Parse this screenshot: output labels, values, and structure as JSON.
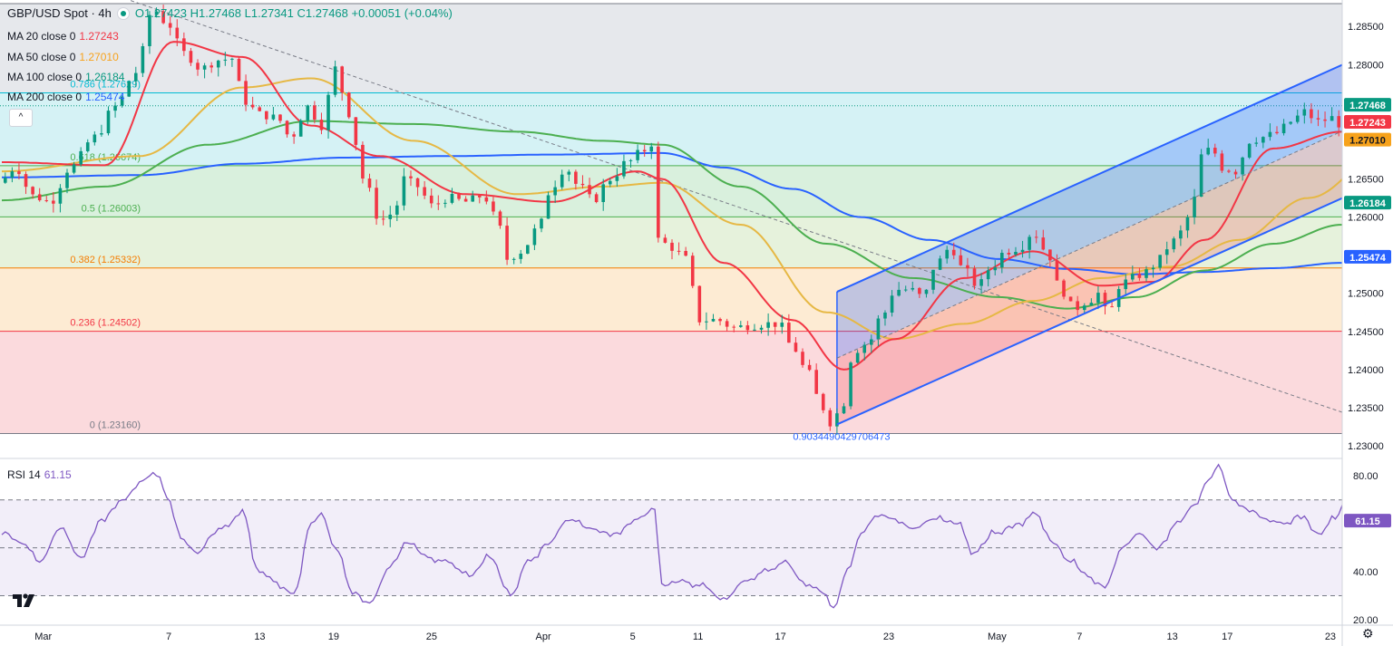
{
  "header": {
    "symbol": "GBP/USD Spot · 4h",
    "o": "O1.27423",
    "h": "H1.27468",
    "l": "L1.27341",
    "c": "C1.27468",
    "change": "+0.00051 (+0.04%)"
  },
  "ma_legend": [
    {
      "label": "MA 20 close 0",
      "value": "1.27243",
      "color": "#f23645"
    },
    {
      "label": "MA 50 close 0",
      "value": "1.27010",
      "color": "#f7a21b"
    },
    {
      "label": "MA 100 close 0",
      "value": "1.26184",
      "color": "#089981"
    },
    {
      "label": "MA 200 close 0",
      "value": "1.25474",
      "color": "#2962ff"
    }
  ],
  "collapse_label": "^",
  "rsi_legend": {
    "label": "RSI 14",
    "value": "61.15",
    "color": "#7e57c2"
  },
  "colors": {
    "up": "#089981",
    "down": "#f23645",
    "ma20": "#f23645",
    "ma50": "#e6b844",
    "ma100": "#4caf50",
    "ma200": "#2962ff",
    "channel": "#2962ff",
    "rsi": "#7e57c2"
  },
  "chart_data": [
    {
      "type": "candlestick",
      "title": "GBP/USD Spot · 4h",
      "ylim": [
        1.23,
        1.288
      ],
      "price_ticks": [
        "1.28500",
        "1.28000",
        "1.27500",
        "1.27000",
        "1.26500",
        "1.26000",
        "1.25500",
        "1.25000",
        "1.24500",
        "1.24000",
        "1.23500",
        "1.23000"
      ],
      "price_tick_values": [
        1.285,
        1.28,
        1.275,
        1.27,
        1.265,
        1.26,
        1.255,
        1.25,
        1.245,
        1.24,
        1.235,
        1.23
      ],
      "x_ticks": [
        "Mar",
        "7",
        "13",
        "19",
        "25",
        "Apr",
        "5",
        "11",
        "17",
        "23",
        "May",
        "7",
        "13",
        "17",
        "23"
      ],
      "x_tick_bars": [
        3,
        76,
        129,
        172,
        229,
        294,
        346,
        384,
        432,
        495,
        558,
        606,
        660,
        692,
        752
      ],
      "n_bars": 780,
      "fib_levels": [
        {
          "label": "0.786 (1.27629)",
          "value": 1.27629,
          "color": "#00bcd4"
        },
        {
          "label": "0.618 (1.26674)",
          "value": 1.26674,
          "color": "#4caf50"
        },
        {
          "label": "0.5 (1.26003)",
          "value": 1.26003,
          "color": "#4caf50"
        },
        {
          "label": "0.382 (1.25332)",
          "value": 1.25332,
          "color": "#f57c00"
        },
        {
          "label": "0.236 (1.24502)",
          "value": 1.24502,
          "color": "#f23645"
        },
        {
          "label": "0 (1.23160)",
          "value": 1.2316,
          "color": "#787b86"
        }
      ],
      "fib_top": 1.288,
      "fib_end_label": "0.9034490429706473",
      "price_labels": [
        {
          "text": "1.27468",
          "value": 1.27468,
          "bg": "#089981",
          "fg": "#ffffff"
        },
        {
          "text": "1.27243",
          "value": 1.27243,
          "bg": "#f23645",
          "fg": "#ffffff"
        },
        {
          "text": "1.27010",
          "value": 1.2701,
          "bg": "#f7a21b",
          "fg": "#131722"
        },
        {
          "text": "1.26184",
          "value": 1.26184,
          "bg": "#089981",
          "fg": "#ffffff"
        },
        {
          "text": "1.25474",
          "value": 1.25474,
          "bg": "#2962ff",
          "fg": "#ffffff"
        }
      ],
      "channel": {
        "start_bar": 486,
        "end_bar": 800,
        "lower_start": 1.2328,
        "lower_end": 1.2645,
        "upper_start": 1.2502,
        "upper_end": 1.282,
        "mid_start": 1.2415,
        "mid_end": 1.2733
      },
      "trendline": {
        "start_bar": 75,
        "start": 1.2884,
        "end_bar": 810,
        "end": 1.2321
      },
      "anchors": [
        [
          0,
          1.2645
        ],
        [
          10,
          1.2665
        ],
        [
          20,
          1.2628
        ],
        [
          30,
          1.262
        ],
        [
          42,
          1.2665
        ],
        [
          56,
          1.2705
        ],
        [
          68,
          1.2745
        ],
        [
          80,
          1.279
        ],
        [
          90,
          1.2873
        ],
        [
          98,
          1.2855
        ],
        [
          108,
          1.2815
        ],
        [
          118,
          1.2795
        ],
        [
          128,
          1.2806
        ],
        [
          136,
          1.2808
        ],
        [
          143,
          1.2752
        ],
        [
          152,
          1.2735
        ],
        [
          162,
          1.273
        ],
        [
          170,
          1.2705
        ],
        [
          180,
          1.2745
        ],
        [
          188,
          1.272
        ],
        [
          196,
          1.2795
        ],
        [
          202,
          1.2755
        ],
        [
          207,
          1.27
        ],
        [
          214,
          1.264
        ],
        [
          222,
          1.2596
        ],
        [
          230,
          1.2605
        ],
        [
          236,
          1.265
        ],
        [
          244,
          1.264
        ],
        [
          252,
          1.2615
        ],
        [
          262,
          1.2625
        ],
        [
          272,
          1.262
        ],
        [
          282,
          1.2628
        ],
        [
          290,
          1.2598
        ],
        [
          296,
          1.2545
        ],
        [
          304,
          1.2555
        ],
        [
          314,
          1.2585
        ],
        [
          322,
          1.264
        ],
        [
          330,
          1.2665
        ],
        [
          338,
          1.264
        ],
        [
          346,
          1.2622
        ],
        [
          356,
          1.265
        ],
        [
          366,
          1.2672
        ],
        [
          376,
          1.2688
        ],
        [
          381,
          1.2698
        ],
        [
          384,
          1.257
        ],
        [
          392,
          1.256
        ],
        [
          400,
          1.2545
        ],
        [
          408,
          1.2465
        ],
        [
          418,
          1.2465
        ],
        [
          428,
          1.2455
        ],
        [
          438,
          1.2458
        ],
        [
          446,
          1.246
        ],
        [
          454,
          1.246
        ],
        [
          462,
          1.243
        ],
        [
          470,
          1.24
        ],
        [
          478,
          1.236
        ],
        [
          483,
          1.233
        ],
        [
          490,
          1.2345
        ],
        [
          498,
          1.2425
        ],
        [
          506,
          1.2435
        ],
        [
          514,
          1.247
        ],
        [
          522,
          1.2505
        ],
        [
          530,
          1.2505
        ],
        [
          538,
          1.2495
        ],
        [
          546,
          1.254
        ],
        [
          554,
          1.256
        ],
        [
          562,
          1.253
        ],
        [
          570,
          1.251
        ],
        [
          578,
          1.2535
        ],
        [
          586,
          1.2555
        ],
        [
          594,
          1.256
        ],
        [
          602,
          1.258
        ],
        [
          610,
          1.2555
        ],
        [
          618,
          1.2505
        ],
        [
          626,
          1.248
        ],
        [
          634,
          1.249
        ],
        [
          640,
          1.25
        ],
        [
          646,
          1.247
        ],
        [
          652,
          1.251
        ],
        [
          660,
          1.252
        ],
        [
          668,
          1.2528
        ],
        [
          676,
          1.2545
        ],
        [
          682,
          1.2565
        ],
        [
          688,
          1.258
        ],
        [
          694,
          1.2605
        ],
        [
          700,
          1.268
        ],
        [
          706,
          1.269
        ],
        [
          712,
          1.2665
        ],
        [
          720,
          1.266
        ],
        [
          728,
          1.27
        ],
        [
          736,
          1.2705
        ],
        [
          744,
          1.271
        ],
        [
          752,
          1.2725
        ],
        [
          760,
          1.2738
        ],
        [
          768,
          1.2725
        ],
        [
          776,
          1.273
        ],
        [
          784,
          1.2715
        ],
        [
          790,
          1.269
        ],
        [
          796,
          1.273
        ],
        [
          802,
          1.274
        ],
        [
          808,
          1.2742
        ],
        [
          812,
          1.27468
        ]
      ],
      "ma_anchors": {
        "ma20": [
          [
            0,
            1.2672
          ],
          [
            60,
            1.2668
          ],
          [
            100,
            1.283
          ],
          [
            140,
            1.281
          ],
          [
            180,
            1.272
          ],
          [
            220,
            1.268
          ],
          [
            270,
            1.263
          ],
          [
            320,
            1.262
          ],
          [
            370,
            1.266
          ],
          [
            384,
            1.265
          ],
          [
            420,
            1.254
          ],
          [
            460,
            1.2465
          ],
          [
            490,
            1.24
          ],
          [
            520,
            1.244
          ],
          [
            560,
            1.252
          ],
          [
            600,
            1.2555
          ],
          [
            640,
            1.251
          ],
          [
            670,
            1.2515
          ],
          [
            700,
            1.257
          ],
          [
            740,
            1.269
          ],
          [
            780,
            1.2712
          ],
          [
            812,
            1.27243
          ]
        ],
        "ma50": [
          [
            0,
            1.266
          ],
          [
            80,
            1.268
          ],
          [
            140,
            1.277
          ],
          [
            180,
            1.2782
          ],
          [
            240,
            1.27
          ],
          [
            300,
            1.263
          ],
          [
            350,
            1.264
          ],
          [
            384,
            1.2645
          ],
          [
            430,
            1.259
          ],
          [
            480,
            1.2475
          ],
          [
            520,
            1.244
          ],
          [
            560,
            1.246
          ],
          [
            600,
            1.249
          ],
          [
            640,
            1.252
          ],
          [
            680,
            1.2535
          ],
          [
            720,
            1.257
          ],
          [
            760,
            1.2625
          ],
          [
            812,
            1.2701
          ]
        ],
        "ma100": [
          [
            0,
            1.2622
          ],
          [
            60,
            1.264
          ],
          [
            120,
            1.2695
          ],
          [
            180,
            1.2726
          ],
          [
            240,
            1.2722
          ],
          [
            300,
            1.2712
          ],
          [
            350,
            1.27
          ],
          [
            384,
            1.2695
          ],
          [
            430,
            1.264
          ],
          [
            480,
            1.2565
          ],
          [
            530,
            1.252
          ],
          [
            580,
            1.2495
          ],
          [
            620,
            1.248
          ],
          [
            660,
            1.2495
          ],
          [
            700,
            1.253
          ],
          [
            740,
            1.2565
          ],
          [
            780,
            1.259
          ],
          [
            812,
            1.26184
          ]
        ],
        "ma200": [
          [
            0,
            1.2652
          ],
          [
            80,
            1.2655
          ],
          [
            140,
            1.267
          ],
          [
            200,
            1.2678
          ],
          [
            260,
            1.268
          ],
          [
            320,
            1.2682
          ],
          [
            384,
            1.2684
          ],
          [
            420,
            1.2665
          ],
          [
            460,
            1.2637
          ],
          [
            500,
            1.26
          ],
          [
            540,
            1.257
          ],
          [
            580,
            1.2545
          ],
          [
            620,
            1.2532
          ],
          [
            660,
            1.2525
          ],
          [
            700,
            1.2528
          ],
          [
            740,
            1.2533
          ],
          [
            780,
            1.254
          ],
          [
            812,
            1.25474
          ]
        ]
      }
    },
    {
      "type": "line",
      "title": "RSI 14",
      "ylim": [
        20,
        85
      ],
      "y_ticks": [
        "80.00",
        "40.00",
        "20.00"
      ],
      "y_tick_values": [
        80,
        40,
        20
      ],
      "bands": [
        70,
        50,
        30
      ],
      "last_value": 61.15,
      "rsi_anchors": [
        [
          0,
          57
        ],
        [
          12,
          52
        ],
        [
          22,
          44
        ],
        [
          34,
          58
        ],
        [
          46,
          46
        ],
        [
          58,
          62
        ],
        [
          70,
          70
        ],
        [
          82,
          78
        ],
        [
          90,
          82
        ],
        [
          96,
          72
        ],
        [
          104,
          54
        ],
        [
          114,
          48
        ],
        [
          124,
          56
        ],
        [
          132,
          60
        ],
        [
          140,
          66
        ],
        [
          148,
          42
        ],
        [
          158,
          36
        ],
        [
          170,
          31
        ],
        [
          180,
          60
        ],
        [
          186,
          64
        ],
        [
          194,
          50
        ],
        [
          204,
          32
        ],
        [
          214,
          27
        ],
        [
          226,
          42
        ],
        [
          236,
          52
        ],
        [
          248,
          46
        ],
        [
          260,
          44
        ],
        [
          272,
          38
        ],
        [
          284,
          46
        ],
        [
          296,
          30
        ],
        [
          306,
          44
        ],
        [
          318,
          52
        ],
        [
          330,
          62
        ],
        [
          342,
          58
        ],
        [
          356,
          56
        ],
        [
          370,
          62
        ],
        [
          380,
          66
        ],
        [
          384,
          34
        ],
        [
          396,
          36
        ],
        [
          408,
          34
        ],
        [
          420,
          28
        ],
        [
          432,
          36
        ],
        [
          444,
          40
        ],
        [
          456,
          44
        ],
        [
          466,
          36
        ],
        [
          476,
          32
        ],
        [
          484,
          25
        ],
        [
          492,
          40
        ],
        [
          500,
          56
        ],
        [
          510,
          64
        ],
        [
          520,
          62
        ],
        [
          530,
          58
        ],
        [
          542,
          62
        ],
        [
          556,
          60
        ],
        [
          566,
          48
        ],
        [
          578,
          56
        ],
        [
          590,
          60
        ],
        [
          602,
          64
        ],
        [
          612,
          52
        ],
        [
          622,
          44
        ],
        [
          632,
          38
        ],
        [
          642,
          34
        ],
        [
          652,
          50
        ],
        [
          662,
          56
        ],
        [
          672,
          50
        ],
        [
          684,
          60
        ],
        [
          694,
          68
        ],
        [
          702,
          78
        ],
        [
          708,
          84
        ],
        [
          716,
          70
        ],
        [
          726,
          66
        ],
        [
          736,
          62
        ],
        [
          746,
          60
        ],
        [
          756,
          64
        ],
        [
          766,
          56
        ],
        [
          776,
          62
        ],
        [
          782,
          70
        ],
        [
          788,
          60
        ],
        [
          796,
          50
        ],
        [
          804,
          56
        ],
        [
          812,
          61.15
        ]
      ]
    }
  ]
}
